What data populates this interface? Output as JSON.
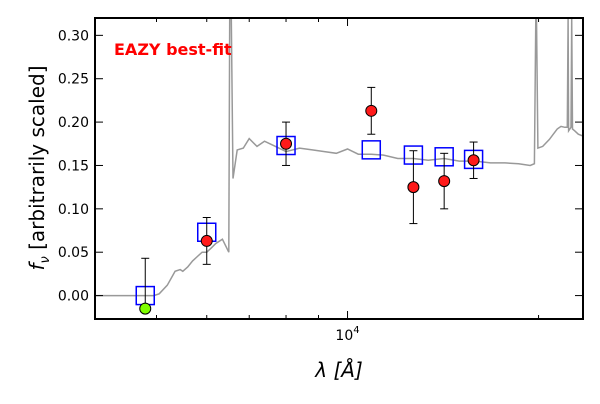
{
  "chart_data": {
    "type": "scatter",
    "title": "",
    "annotation": {
      "text": "EAZY best-fit",
      "color": "#ff0000"
    },
    "ylabel": {
      "prefix": "f",
      "sub": "ν",
      "suffix": " [arbitrarily scaled]"
    },
    "xlabel": {
      "symbol": "λ",
      "unit": "[Å]"
    },
    "x_scale": "log",
    "xlim": [
      4000,
      23500
    ],
    "ylim": [
      -0.027,
      0.32
    ],
    "yticks": [
      0.0,
      0.05,
      0.1,
      0.15,
      0.2,
      0.25,
      0.3
    ],
    "ytick_labels": [
      "0.00",
      "0.05",
      "0.10",
      "0.15",
      "0.20",
      "0.25",
      "0.30"
    ],
    "xtick_major": {
      "value": 10000,
      "label_base": "10",
      "label_exp": "4"
    },
    "xtick_minor": [
      5000,
      6000,
      7000,
      8000,
      9000,
      20000
    ],
    "grid": false,
    "colors": {
      "template": "#999999",
      "model_box": "#0000ff",
      "detection": "#ff1a1a",
      "nondetection": "#7fff00",
      "errorbar": "#000000"
    },
    "series": [
      {
        "kind": "template",
        "points": [
          [
            4000,
            0.0
          ],
          [
            4800,
            0.0
          ],
          [
            4950,
            0.0
          ],
          [
            5050,
            0.002
          ],
          [
            5200,
            0.012
          ],
          [
            5350,
            0.028
          ],
          [
            5450,
            0.03
          ],
          [
            5500,
            0.028
          ],
          [
            5600,
            0.033
          ],
          [
            5700,
            0.04
          ],
          [
            5800,
            0.045
          ],
          [
            5900,
            0.05
          ],
          [
            6000,
            0.05
          ],
          [
            6100,
            0.055
          ],
          [
            6200,
            0.06
          ],
          [
            6350,
            0.065
          ],
          [
            6500,
            0.05
          ],
          [
            6520,
            0.32
          ],
          [
            6560,
            0.32
          ],
          [
            6600,
            0.135
          ],
          [
            6700,
            0.168
          ],
          [
            6850,
            0.17
          ],
          [
            7000,
            0.181
          ],
          [
            7200,
            0.172
          ],
          [
            7400,
            0.178
          ],
          [
            7700,
            0.172
          ],
          [
            8000,
            0.166
          ],
          [
            8400,
            0.17
          ],
          [
            8800,
            0.168
          ],
          [
            9200,
            0.166
          ],
          [
            9600,
            0.164
          ],
          [
            10000,
            0.169
          ],
          [
            10400,
            0.163
          ],
          [
            10900,
            0.163
          ],
          [
            11400,
            0.162
          ],
          [
            12000,
            0.158
          ],
          [
            12700,
            0.158
          ],
          [
            13400,
            0.156
          ],
          [
            14200,
            0.158
          ],
          [
            15000,
            0.155
          ],
          [
            15900,
            0.155
          ],
          [
            16800,
            0.153
          ],
          [
            17700,
            0.153
          ],
          [
            18600,
            0.152
          ],
          [
            19400,
            0.15
          ],
          [
            19700,
            0.152
          ],
          [
            19800,
            0.32
          ],
          [
            19850,
            0.32
          ],
          [
            19950,
            0.17
          ],
          [
            20300,
            0.172
          ],
          [
            20800,
            0.18
          ],
          [
            21100,
            0.186
          ],
          [
            21400,
            0.192
          ],
          [
            21700,
            0.195
          ],
          [
            22000,
            0.194
          ],
          [
            22200,
            0.194
          ],
          [
            22260,
            0.32
          ],
          [
            22300,
            0.19
          ],
          [
            22500,
            0.194
          ],
          [
            22560,
            0.32
          ],
          [
            22620,
            0.192
          ],
          [
            22800,
            0.19
          ],
          [
            23100,
            0.186
          ],
          [
            23500,
            0.184
          ]
        ]
      },
      {
        "kind": "model",
        "points": [
          [
            4800,
            0.0
          ],
          [
            6000,
            0.073
          ],
          [
            8000,
            0.173
          ],
          [
            10900,
            0.168
          ],
          [
            12700,
            0.162
          ],
          [
            14200,
            0.16
          ],
          [
            15800,
            0.157
          ]
        ]
      },
      {
        "kind": "photometry",
        "points": [
          {
            "x": 4800,
            "y": -0.015,
            "err": [
              0.058,
              0.0
            ],
            "detected": false
          },
          {
            "x": 6000,
            "y": 0.063,
            "err": [
              0.027,
              0.027
            ],
            "detected": true
          },
          {
            "x": 8000,
            "y": 0.175,
            "err": [
              0.025,
              0.025
            ],
            "detected": true
          },
          {
            "x": 10900,
            "y": 0.213,
            "err": [
              0.027,
              0.027
            ],
            "detected": true
          },
          {
            "x": 12700,
            "y": 0.125,
            "err": [
              0.042,
              0.042
            ],
            "detected": true
          },
          {
            "x": 14200,
            "y": 0.132,
            "err": [
              0.032,
              0.032
            ],
            "detected": true
          },
          {
            "x": 15800,
            "y": 0.156,
            "err": [
              0.021,
              0.021
            ],
            "detected": true
          }
        ]
      }
    ]
  }
}
